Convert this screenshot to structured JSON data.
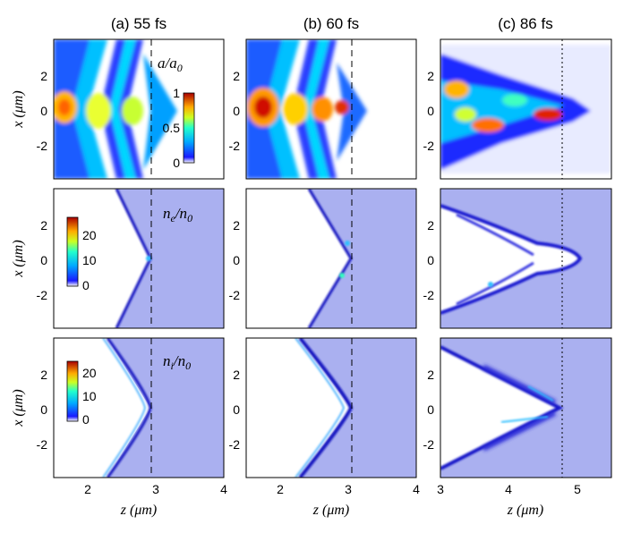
{
  "chart_data": {
    "type": "heatmap",
    "columns": [
      {
        "title": "(a) 55 fs",
        "xlim": [
          1.5,
          4.0
        ],
        "xticks": [
          "2",
          "3",
          "4"
        ],
        "marker_z": 2.95,
        "marker_style": "dashed"
      },
      {
        "title": "(b) 60 fs",
        "xlim": [
          1.5,
          4.0
        ],
        "xticks": [
          "2",
          "3",
          "4"
        ],
        "marker_z": 3.08,
        "marker_style": "dashed"
      },
      {
        "title": "(c) 86 fs",
        "xlim": [
          3.0,
          5.5
        ],
        "xticks": [
          "3",
          "4",
          "5"
        ],
        "marker_z": 4.7,
        "marker_style": "dotted"
      }
    ],
    "rows": [
      {
        "quantity": "a/a0",
        "label_base": "a/a",
        "label_sub": "0",
        "colorbar": {
          "min": 0,
          "max": 1,
          "ticks": [
            "0",
            "0.5",
            "1"
          ]
        }
      },
      {
        "quantity": "ne/n0",
        "label_base": "n",
        "label_sub_num": "e",
        "label_den": "/n",
        "label_sub_den": "0",
        "colorbar": {
          "min": 0,
          "max": 20,
          "ticks": [
            "0",
            "10",
            "20"
          ]
        }
      },
      {
        "quantity": "ni/n0",
        "label_base": "n",
        "label_sub_num": "i",
        "label_den": "/n",
        "label_sub_den": "0",
        "colorbar": {
          "min": 0,
          "max": 20,
          "ticks": [
            "0",
            "10",
            "20"
          ]
        }
      }
    ],
    "ylim": [
      -3.8,
      3.8
    ],
    "yticks": [
      "-2",
      "0",
      "2"
    ],
    "xlabel": "z (μm)",
    "ylabel": "x (μm)",
    "colormap": "jet"
  }
}
